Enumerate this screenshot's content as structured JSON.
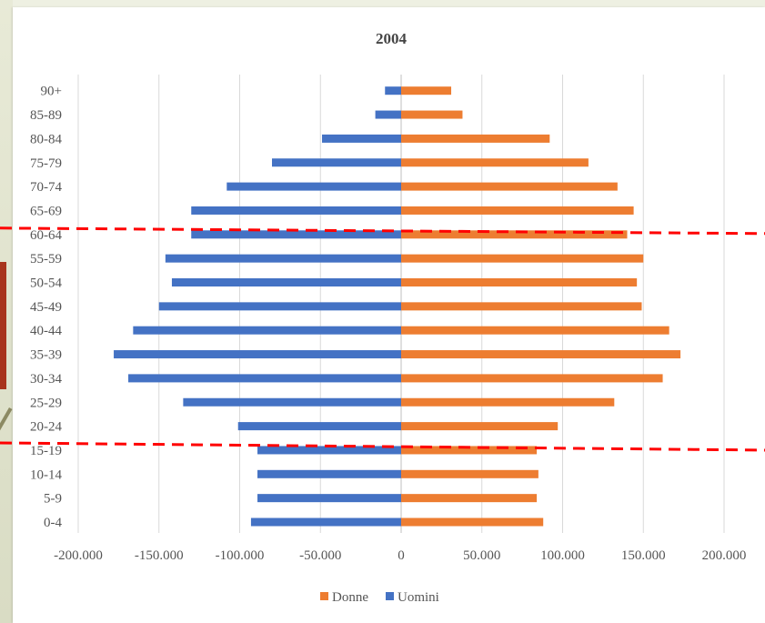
{
  "chart_data": {
    "type": "bar",
    "orientation": "horizontal",
    "title": "2004",
    "categories": [
      "0-4",
      "5-9",
      "10-14",
      "15-19",
      "20-24",
      "25-29",
      "30-34",
      "35-39",
      "40-44",
      "45-49",
      "50-54",
      "55-59",
      "60-64",
      "65-69",
      "70-74",
      "75-79",
      "80-84",
      "85-89",
      "90+"
    ],
    "series": [
      {
        "name": "Donne",
        "color": "#ed7d31",
        "values": [
          88000,
          84000,
          85000,
          84000,
          97000,
          132000,
          162000,
          173000,
          166000,
          149000,
          146000,
          150000,
          140000,
          144000,
          134000,
          116000,
          92000,
          38000,
          31000
        ]
      },
      {
        "name": "Uomini",
        "color": "#4472c4",
        "values": [
          -93000,
          -89000,
          -89000,
          -89000,
          -101000,
          -135000,
          -169000,
          -178000,
          -166000,
          -150000,
          -142000,
          -146000,
          -130000,
          -130000,
          -108000,
          -80000,
          -49000,
          -16000,
          -10000
        ]
      }
    ],
    "xticks": [
      "-200.000",
      "-150.000",
      "-100.000",
      "-50.000",
      "0",
      "50.000",
      "100.000",
      "150.000",
      "200.000"
    ],
    "xlim": [
      -200000,
      200000
    ],
    "grid": true,
    "legend": "bottom",
    "reference_lines": [
      {
        "style": "dashed",
        "color": "#ff0000",
        "category": "60-64"
      },
      {
        "style": "dashed",
        "color": "#ff0000",
        "category": "15-19"
      }
    ]
  }
}
